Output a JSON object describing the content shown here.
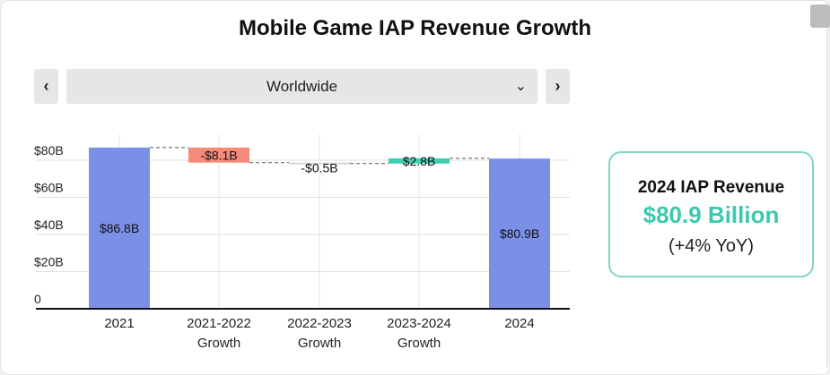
{
  "title": "Mobile Game IAP Revenue Growth",
  "nav": {
    "prev_label": "‹",
    "next_label": "›",
    "region": "Worldwide",
    "dropdown_icon": "⌄"
  },
  "kpi": {
    "title": "2024 IAP Revenue",
    "value": "$80.9 Billion",
    "change": "(+4% YoY)"
  },
  "colors": {
    "total": "#7b8fe6",
    "decrease": "#f48a7a",
    "increase": "#3ccfb0",
    "small": "#d6d6d6",
    "accent": "#3cc9ad"
  },
  "chart_data": {
    "type": "waterfall",
    "title": "Mobile Game IAP Revenue Growth",
    "categories": [
      [
        "2021"
      ],
      [
        "2021-2022",
        "Growth"
      ],
      [
        "2022-2023",
        "Growth"
      ],
      [
        "2023-2024",
        "Growth"
      ],
      [
        "2024"
      ]
    ],
    "values": [
      86.8,
      -8.1,
      -0.5,
      2.8,
      80.9
    ],
    "kinds": [
      "total",
      "delta",
      "delta",
      "delta",
      "total"
    ],
    "labels": [
      "$86.8B",
      "-$8.1B",
      "-$0.5B",
      "$2.8B",
      "$80.9B"
    ],
    "yticks": [
      0,
      20,
      40,
      60,
      80
    ],
    "ytick_labels": [
      "0",
      "$20B",
      "$40B",
      "$60B",
      "$80B"
    ],
    "ylim": [
      0,
      80
    ],
    "unit": "B USD",
    "grid": true
  }
}
